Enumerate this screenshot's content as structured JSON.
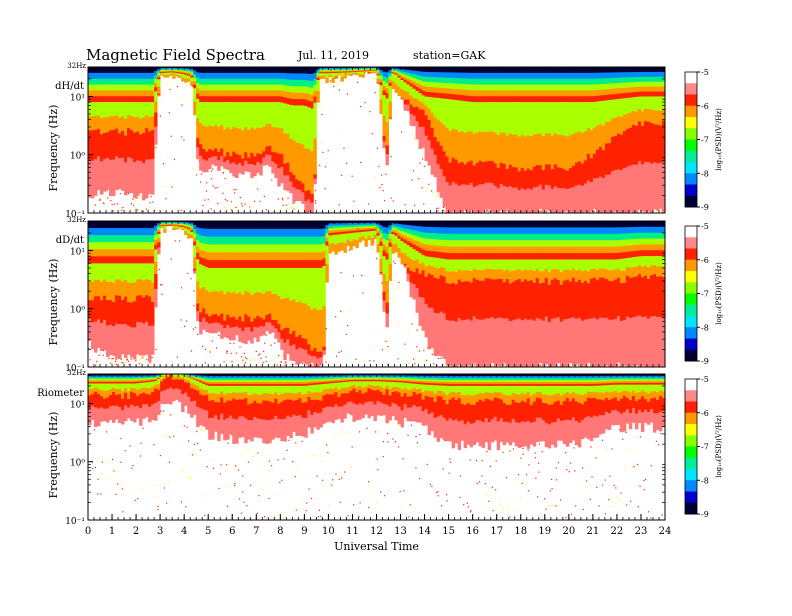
{
  "header": {
    "title": "Magnetic Field Spectra",
    "date": "Jul. 11, 2019",
    "station": "station=GAK"
  },
  "colors": {
    "colormap": [
      "#000033",
      "#0000cc",
      "#0088ff",
      "#00e5ff",
      "#00ee88",
      "#00ff00",
      "#aaff00",
      "#ffff00",
      "#ff9900",
      "#ff2200",
      "#ff7777",
      "#ffffff"
    ]
  },
  "chart_data": [
    {
      "type": "heatmap",
      "panel_label": "dH/dt",
      "ylabel": "Frequency (Hz)",
      "y_top_label": "32Hz",
      "yticks": [
        "10¹",
        "10⁰",
        "10⁻¹"
      ],
      "ylim_hz": [
        0.1,
        32
      ],
      "y_scale": "log",
      "xlim": [
        0,
        24
      ],
      "colorbar": {
        "label": "log₁₀(PSD)(V²/Hz)",
        "min": -9,
        "max": -5,
        "ticks": [
          "-5",
          "-6",
          "-7",
          "-8",
          "-9"
        ]
      },
      "profile": {
        "hours": [
          0,
          1,
          2,
          2.7,
          3,
          3.5,
          4,
          4.3,
          4.6,
          5,
          6,
          7,
          7.6,
          8,
          8.5,
          9,
          9.4,
          9.6,
          10,
          11,
          12,
          12.4,
          12.7,
          13,
          14,
          15,
          16,
          17,
          18,
          19,
          20,
          21,
          22,
          23,
          24
        ],
        "red_top_hz": [
          2.5,
          2.5,
          2.5,
          2.5,
          20,
          22,
          18,
          16,
          1.5,
          1.3,
          1.0,
          1.0,
          1.3,
          1.0,
          0.5,
          0.3,
          0.2,
          20,
          20,
          22,
          25,
          1.0,
          15,
          10,
          5,
          0.8,
          0.7,
          0.7,
          0.6,
          0.6,
          0.6,
          1.0,
          2.0,
          3.5,
          3.5
        ],
        "fill_min_hz": [
          0.2,
          0.25,
          0.2,
          0.2,
          30,
          30,
          30,
          25,
          0.6,
          0.6,
          0.5,
          0.5,
          0.6,
          0.3,
          0.18,
          0.12,
          0.1,
          30,
          30,
          30,
          30,
          0.5,
          30,
          10,
          1.0,
          0.1,
          0.1,
          0.1,
          0.1,
          0.1,
          0.1,
          0.1,
          0.1,
          0.1,
          0.1
        ],
        "yellow_top_hz": [
          8,
          8,
          8,
          8,
          25,
          26,
          24,
          22,
          8,
          8,
          8,
          8,
          8,
          8,
          7,
          7,
          6,
          25,
          25,
          26,
          28,
          8,
          26,
          20,
          10,
          9,
          8,
          8,
          8,
          8,
          8,
          8,
          9,
          10,
          10
        ]
      }
    },
    {
      "type": "heatmap",
      "panel_label": "dD/dt",
      "ylabel": "Frequency (Hz)",
      "y_top_label": "32Hz",
      "yticks": [
        "10¹",
        "10⁰",
        "10⁻¹"
      ],
      "ylim_hz": [
        0.1,
        32
      ],
      "y_scale": "log",
      "xlim": [
        0,
        24
      ],
      "colorbar": {
        "label": "log₁₀(PSD)(V²/Hz)",
        "min": -9,
        "max": -5,
        "ticks": [
          "-5",
          "-6",
          "-7",
          "-8",
          "-9"
        ]
      },
      "profile": {
        "hours": [
          0,
          1,
          2,
          2.7,
          3,
          3.5,
          4,
          4.3,
          4.6,
          5,
          6,
          7,
          7.6,
          8,
          8.5,
          9,
          9.4,
          9.8,
          10,
          11,
          12,
          12.4,
          12.7,
          13,
          14,
          15,
          16,
          17,
          18,
          19,
          20,
          21,
          22,
          23,
          24
        ],
        "red_top_hz": [
          1.5,
          1.5,
          1.5,
          1.5,
          22,
          24,
          20,
          18,
          1.0,
          0.8,
          0.7,
          0.7,
          0.8,
          0.5,
          0.4,
          0.3,
          0.2,
          0.2,
          8,
          12,
          15,
          1.0,
          10,
          6,
          4,
          3,
          3,
          3,
          3,
          3,
          3,
          3,
          3,
          3.5,
          3.5
        ],
        "fill_min_hz": [
          0.25,
          0.15,
          0.15,
          0.15,
          30,
          30,
          30,
          28,
          0.4,
          0.4,
          0.3,
          0.3,
          0.4,
          0.2,
          0.12,
          0.1,
          0.1,
          0.1,
          30,
          30,
          30,
          0.3,
          30,
          8,
          0.3,
          0.1,
          0.1,
          0.1,
          0.1,
          0.1,
          0.1,
          0.1,
          0.1,
          0.1,
          0.1
        ],
        "yellow_top_hz": [
          6,
          6,
          6,
          6,
          26,
          27,
          25,
          22,
          6,
          5,
          5,
          5,
          5,
          5,
          5,
          5,
          5,
          5,
          18,
          20,
          22,
          6,
          20,
          15,
          8,
          7,
          7,
          7,
          7,
          7,
          7,
          7,
          7,
          8,
          8
        ]
      }
    },
    {
      "type": "heatmap",
      "panel_label": "Riometer",
      "ylabel": "Frequency (Hz)",
      "y_top_label": "32Hz",
      "yticks": [
        "10¹",
        "10⁰",
        "10⁻¹"
      ],
      "ylim_hz": [
        0.1,
        32
      ],
      "y_scale": "log",
      "xlim": [
        0,
        24
      ],
      "xlabel": "Universal Time",
      "xticks": [
        "0",
        "1",
        "2",
        "3",
        "4",
        "5",
        "6",
        "7",
        "8",
        "9",
        "10",
        "11",
        "12",
        "13",
        "14",
        "15",
        "16",
        "17",
        "18",
        "19",
        "20",
        "21",
        "22",
        "23",
        "24"
      ],
      "colorbar": {
        "label": "log₁₀(PSD)(V²/Hz)",
        "min": -9,
        "max": -5,
        "ticks": [
          "-5",
          "-6",
          "-7",
          "-8",
          "-9"
        ]
      },
      "profile": {
        "hours": [
          0,
          1,
          2,
          2.8,
          3.2,
          3.8,
          4.4,
          5,
          6,
          7,
          8,
          9,
          10,
          11,
          12,
          13,
          14,
          15,
          16,
          17,
          18,
          19,
          20,
          21,
          22,
          23,
          24
        ],
        "red_top_hz": [
          14,
          14,
          14,
          16,
          30,
          28,
          18,
          12,
          11,
          11,
          11,
          11,
          14,
          16,
          16,
          15,
          13,
          11,
          11,
          11,
          11,
          11,
          11,
          11,
          12,
          12,
          12
        ],
        "fill_min_hz": [
          5,
          5,
          5,
          6,
          12,
          10,
          6,
          3,
          2.5,
          2.5,
          2.5,
          3,
          5,
          6,
          6,
          5,
          4,
          2,
          2,
          2,
          2,
          2,
          2,
          2.5,
          4,
          4,
          4
        ],
        "yellow_top_hz": [
          22,
          22,
          22,
          24,
          32,
          32,
          26,
          20,
          20,
          20,
          20,
          20,
          22,
          24,
          24,
          23,
          21,
          20,
          20,
          20,
          20,
          20,
          20,
          20,
          21,
          21,
          21
        ]
      }
    }
  ]
}
